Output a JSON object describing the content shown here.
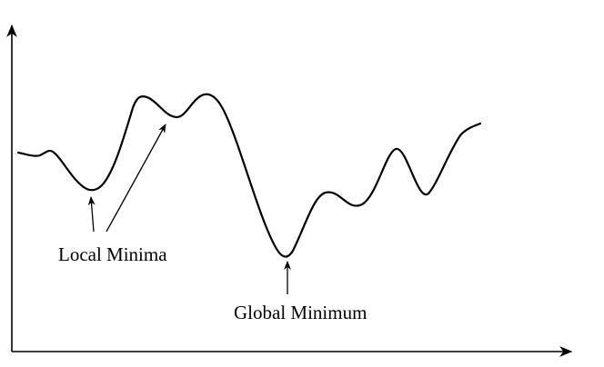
{
  "labels": {
    "local_minima": "Local Minima",
    "global_minimum": "Global Minimum"
  },
  "colors": {
    "ink": "#000000",
    "background": "#ffffff"
  }
}
